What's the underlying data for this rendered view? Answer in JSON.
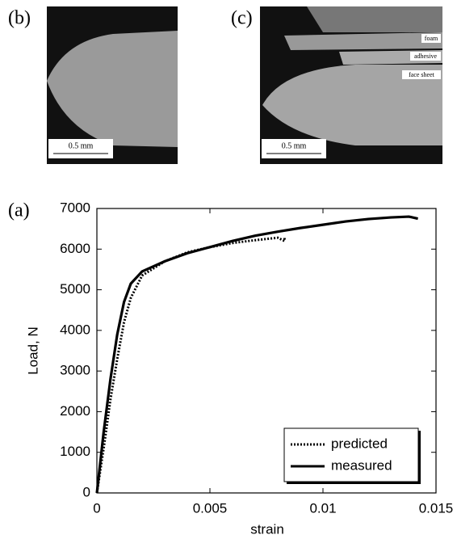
{
  "panels": {
    "b": {
      "label": "(b)",
      "scale": "0.5 mm"
    },
    "c": {
      "label": "(c)",
      "scale": "0.5 mm",
      "layers": [
        "foam",
        "adhesive",
        "face sheet"
      ]
    },
    "a": {
      "label": "(a)"
    }
  },
  "chart_data": {
    "type": "line",
    "x_label": "strain",
    "y_label": "Load, N",
    "xlim": [
      0,
      0.015
    ],
    "xticks": [
      0,
      0.005,
      0.01,
      0.015
    ],
    "ylim": [
      0,
      7000
    ],
    "yticks": [
      0,
      1000,
      2000,
      3000,
      4000,
      5000,
      6000,
      7000
    ],
    "legend": "lower right",
    "series": [
      {
        "name": "predicted",
        "color": "#000000",
        "style": "dotted",
        "x": [
          0,
          0.0003,
          0.0006,
          0.0009,
          0.0012,
          0.0015,
          0.002,
          0.003,
          0.004,
          0.005,
          0.006,
          0.007,
          0.0075,
          0.008,
          0.0083,
          0.0083
        ],
        "values": [
          0,
          1100,
          2300,
          3300,
          4200,
          4800,
          5350,
          5700,
          5920,
          6050,
          6150,
          6220,
          6250,
          6280,
          6200,
          6300
        ]
      },
      {
        "name": "measured",
        "color": "#000000",
        "style": "solid",
        "x": [
          0,
          0.0003,
          0.0006,
          0.0009,
          0.0012,
          0.0015,
          0.002,
          0.003,
          0.004,
          0.005,
          0.006,
          0.007,
          0.008,
          0.009,
          0.01,
          0.011,
          0.012,
          0.013,
          0.0138,
          0.0142
        ],
        "values": [
          0,
          1500,
          2800,
          3900,
          4700,
          5150,
          5450,
          5700,
          5900,
          6050,
          6200,
          6330,
          6430,
          6520,
          6600,
          6680,
          6740,
          6780,
          6800,
          6750
        ]
      }
    ]
  }
}
